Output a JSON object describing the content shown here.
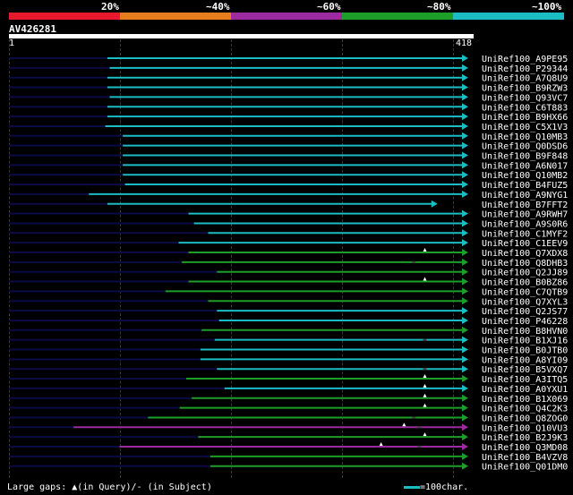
{
  "header": {
    "percent_labels": [
      "20%",
      "~40%",
      "~60%",
      "~80%",
      "~100%"
    ],
    "identity_colors": [
      "#e8192c",
      "#e87d1e",
      "#9c2aa0",
      "#1d9e29",
      "#1bbcc4"
    ]
  },
  "query": {
    "name": "AV426281",
    "start": "1",
    "end": "418",
    "length": 418
  },
  "colors": {
    "background": "#000000",
    "query_line": "#0b0b46"
  },
  "hits": [
    {
      "id": "UniRef100_A9PE95",
      "start": 90,
      "end": 418,
      "color": "cyan"
    },
    {
      "id": "UniRef100_P29344",
      "start": 92,
      "end": 418,
      "color": "cyan"
    },
    {
      "id": "UniRef100_A7Q8U9",
      "start": 90,
      "end": 418,
      "color": "cyan"
    },
    {
      "id": "UniRef100_B9RZW3",
      "start": 90,
      "end": 418,
      "color": "cyan"
    },
    {
      "id": "UniRef100_Q93VC7",
      "start": 92,
      "end": 418,
      "color": "cyan"
    },
    {
      "id": "UniRef100_C6T883",
      "start": 90,
      "end": 418,
      "color": "cyan"
    },
    {
      "id": "UniRef100_B9HX66",
      "start": 90,
      "end": 418,
      "color": "cyan"
    },
    {
      "id": "UniRef100_C5X1V3",
      "start": 88,
      "end": 418,
      "color": "cyan"
    },
    {
      "id": "UniRef100_Q10MB3",
      "start": 104,
      "end": 418,
      "color": "cyan"
    },
    {
      "id": "UniRef100_Q0DSD6",
      "start": 104,
      "end": 418,
      "color": "cyan"
    },
    {
      "id": "UniRef100_B9F848",
      "start": 104,
      "end": 418,
      "color": "cyan"
    },
    {
      "id": "UniRef100_A6N017",
      "start": 104,
      "end": 418,
      "color": "cyan"
    },
    {
      "id": "UniRef100_Q10MB2",
      "start": 104,
      "end": 418,
      "color": "cyan"
    },
    {
      "id": "UniRef100_B4FUZ5",
      "start": 106,
      "end": 418,
      "color": "cyan"
    },
    {
      "id": "UniRef100_A9NYG1",
      "start": 73,
      "end": 418,
      "color": "cyan"
    },
    {
      "id": "UniRef100_B7FFT2",
      "start": 90,
      "end": 390,
      "color": "cyan"
    },
    {
      "id": "UniRef100_A9RWH7",
      "start": 164,
      "end": 418,
      "color": "cyan"
    },
    {
      "id": "UniRef100_A9S0R6",
      "start": 169,
      "end": 418,
      "color": "cyan"
    },
    {
      "id": "UniRef100_C1MYF2",
      "start": 182,
      "end": 418,
      "color": "cyan"
    },
    {
      "id": "UniRef100_C1EEV9",
      "start": 155,
      "end": 418,
      "color": "cyan"
    },
    {
      "id": "UniRef100_Q7XDX8",
      "start": 164,
      "end": 418,
      "color": "green",
      "gap_query": 380
    },
    {
      "id": "UniRef100_Q8DHB3",
      "start": 158,
      "end": 418,
      "color": "green",
      "gap_subject": 370
    },
    {
      "id": "UniRef100_Q2JJ89",
      "start": 190,
      "end": 418,
      "color": "green"
    },
    {
      "id": "UniRef100_B0BZ86",
      "start": 164,
      "end": 418,
      "color": "green",
      "gap_query": 380
    },
    {
      "id": "UniRef100_C7QTB9",
      "start": 143,
      "end": 418,
      "color": "green"
    },
    {
      "id": "UniRef100_Q7XYL3",
      "start": 182,
      "end": 418,
      "color": "green"
    },
    {
      "id": "UniRef100_Q2JS77",
      "start": 190,
      "end": 418,
      "color": "cyan"
    },
    {
      "id": "UniRef100_P46228",
      "start": 192,
      "end": 418,
      "color": "cyan"
    },
    {
      "id": "UniRef100_B8HVN0",
      "start": 176,
      "end": 418,
      "color": "green"
    },
    {
      "id": "UniRef100_B1XJ16",
      "start": 188,
      "end": 418,
      "color": "cyan",
      "gap_subject": 380
    },
    {
      "id": "UniRef100_B0JTB0",
      "start": 175,
      "end": 418,
      "color": "cyan"
    },
    {
      "id": "UniRef100_A8YI09",
      "start": 175,
      "end": 418,
      "color": "cyan"
    },
    {
      "id": "UniRef100_B5VXQ7",
      "start": 190,
      "end": 418,
      "color": "cyan",
      "gap_subject": 380
    },
    {
      "id": "UniRef100_A3ITQ5",
      "start": 162,
      "end": 418,
      "color": "green",
      "gap_query": 380
    },
    {
      "id": "UniRef100_A0YXU1",
      "start": 197,
      "end": 418,
      "color": "cyan",
      "gap_query": 380
    },
    {
      "id": "UniRef100_B1X069",
      "start": 167,
      "end": 418,
      "color": "green",
      "gap_query": 380
    },
    {
      "id": "UniRef100_Q4C2K3",
      "start": 156,
      "end": 418,
      "color": "green",
      "gap_query": 380
    },
    {
      "id": "UniRef100_Q8ZOG0",
      "start": 127,
      "end": 418,
      "color": "green",
      "gap_subject": 370
    },
    {
      "id": "UniRef100_Q10VU3",
      "start": 59,
      "end": 418,
      "color": "purple",
      "gap_query": 361,
      "gap_subject": 375
    },
    {
      "id": "UniRef100_B2J9K3",
      "start": 173,
      "end": 418,
      "color": "green",
      "gap_query": 380
    },
    {
      "id": "UniRef100_Q3MD08",
      "start": 101,
      "end": 418,
      "color": "purple",
      "gap_query": 340,
      "gap_subject": 375
    },
    {
      "id": "UniRef100_B4VZV8",
      "start": 184,
      "end": 418,
      "color": "green"
    },
    {
      "id": "UniRef100_Q01DM0",
      "start": 184,
      "end": 418,
      "color": "green"
    }
  ],
  "footer": {
    "gaps_label": "Large gaps:",
    "query_gap_text": "(in Query)/",
    "subject_gap_text": "-",
    "subject_gap_suffix": "(in Subject)",
    "scale_text": "=100char."
  }
}
